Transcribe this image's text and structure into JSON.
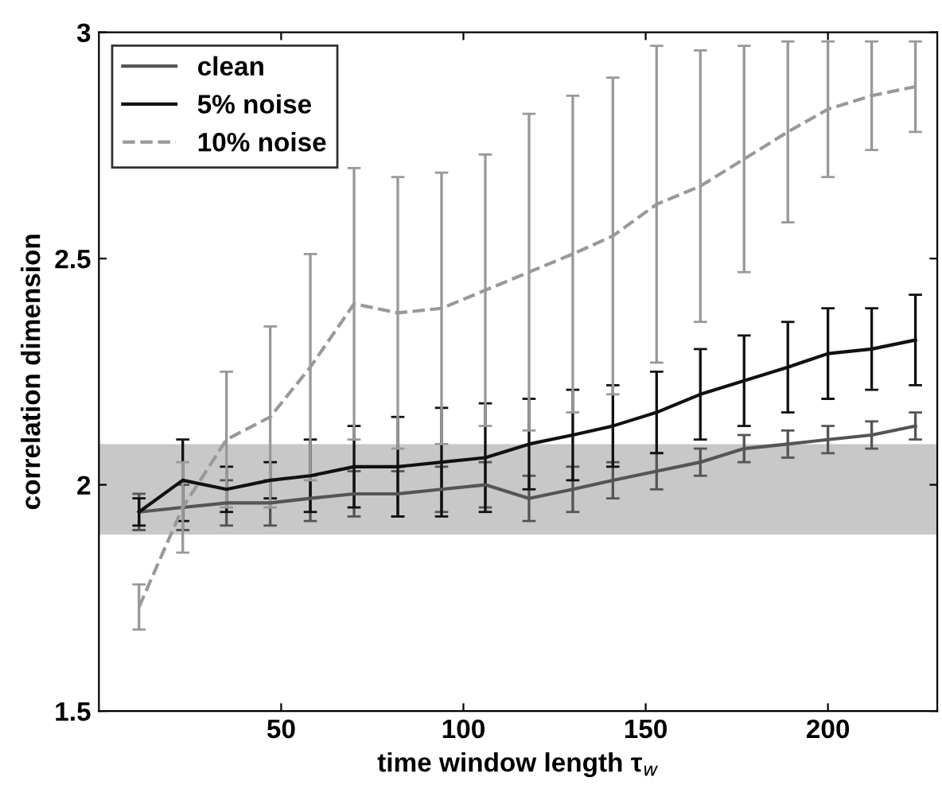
{
  "chart_data": {
    "type": "line",
    "xlabel": "time window length τ$_{w}$",
    "ylabel": "correlation dimension",
    "x": [
      11,
      23,
      35,
      47,
      58,
      70,
      82,
      94,
      106,
      118,
      130,
      141,
      153,
      165,
      177,
      189,
      200,
      212,
      224
    ],
    "xlim": [
      0,
      230
    ],
    "xticks": [
      50,
      100,
      150,
      200
    ],
    "ylim": [
      1.5,
      3
    ],
    "yticks": [
      1.5,
      2,
      2.5,
      3
    ],
    "grid": false,
    "legend": "top left",
    "marker": "none",
    "bands": [
      {
        "axis": "y",
        "from": 1.89,
        "to": 2.09,
        "color": "#c8c8c8"
      }
    ],
    "series": [
      {
        "name": "clean",
        "color": "#555555",
        "line_style": "solid",
        "values": [
          1.94,
          1.95,
          1.96,
          1.96,
          1.97,
          1.98,
          1.98,
          1.99,
          2.0,
          1.97,
          1.99,
          2.01,
          2.03,
          2.05,
          2.08,
          2.09,
          2.1,
          2.11,
          2.13
        ],
        "errors": [
          0.04,
          0.05,
          0.05,
          0.05,
          0.05,
          0.05,
          0.05,
          0.05,
          0.05,
          0.05,
          0.05,
          0.04,
          0.04,
          0.03,
          0.03,
          0.03,
          0.03,
          0.03,
          0.03
        ]
      },
      {
        "name": "5% noise",
        "color": "#111111",
        "line_style": "solid",
        "values": [
          1.94,
          2.01,
          1.99,
          2.01,
          2.02,
          2.04,
          2.04,
          2.05,
          2.06,
          2.09,
          2.11,
          2.13,
          2.16,
          2.2,
          2.23,
          2.26,
          2.29,
          2.3,
          2.32
        ],
        "errors": [
          0.03,
          0.09,
          0.05,
          0.04,
          0.08,
          0.09,
          0.11,
          0.12,
          0.12,
          0.1,
          0.1,
          0.09,
          0.09,
          0.1,
          0.1,
          0.1,
          0.1,
          0.09,
          0.1
        ]
      },
      {
        "name": "10% noise",
        "color": "#999999",
        "line_style": "dashed",
        "values": [
          1.73,
          1.95,
          2.1,
          2.15,
          2.26,
          2.4,
          2.38,
          2.39,
          2.43,
          2.47,
          2.51,
          2.55,
          2.62,
          2.66,
          2.72,
          2.78,
          2.83,
          2.86,
          2.88
        ],
        "errors": [
          0.05,
          0.1,
          0.15,
          0.2,
          0.25,
          0.3,
          0.3,
          0.3,
          0.3,
          0.35,
          0.35,
          0.35,
          0.35,
          0.3,
          0.25,
          0.2,
          0.15,
          0.12,
          0.1
        ]
      }
    ]
  }
}
